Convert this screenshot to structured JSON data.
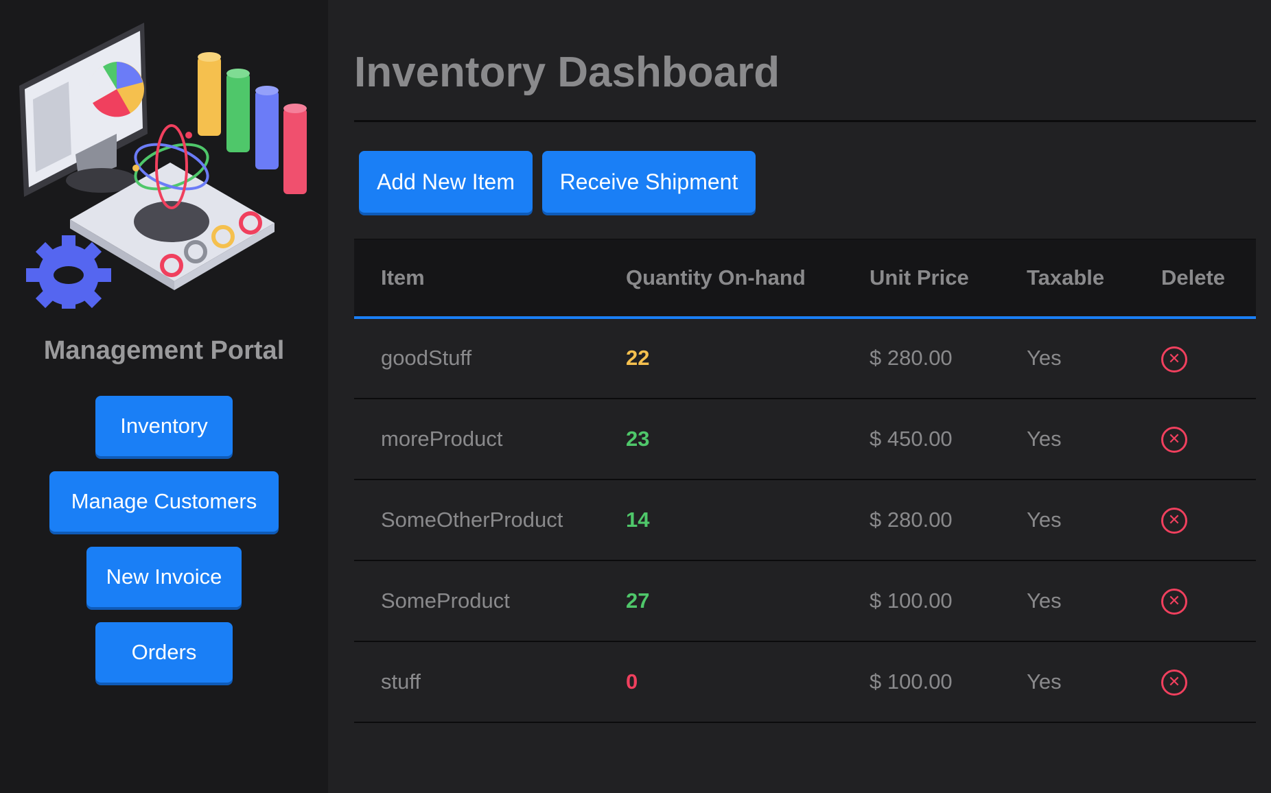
{
  "sidebar": {
    "portal_title": "Management Portal",
    "nav": [
      {
        "label": "Inventory"
      },
      {
        "label": "Manage Customers"
      },
      {
        "label": "New Invoice"
      },
      {
        "label": "Orders"
      }
    ],
    "illustration_icon": "analytics-illustration"
  },
  "main": {
    "title": "Inventory Dashboard",
    "actions": {
      "add_label": "Add New Item",
      "receive_label": "Receive Shipment"
    },
    "table": {
      "headers": [
        "Item",
        "Quantity On-hand",
        "Unit Price",
        "Taxable",
        "Delete"
      ],
      "rows": [
        {
          "item": "goodStuff",
          "qty": "22",
          "qty_color": "#f5c04e",
          "price": "$ 280.00",
          "taxable": "Yes"
        },
        {
          "item": "moreProduct",
          "qty": "23",
          "qty_color": "#4fc76a",
          "price": "$ 450.00",
          "taxable": "Yes"
        },
        {
          "item": "SomeOtherProduct",
          "qty": "14",
          "qty_color": "#4fc76a",
          "price": "$ 280.00",
          "taxable": "Yes"
        },
        {
          "item": "SomeProduct",
          "qty": "27",
          "qty_color": "#4fc76a",
          "price": "$ 100.00",
          "taxable": "Yes"
        },
        {
          "item": "stuff",
          "qty": "0",
          "qty_color": "#f0405e",
          "price": "$ 100.00",
          "taxable": "Yes"
        }
      ],
      "delete_icon": "close-circle-icon"
    }
  },
  "colors": {
    "accent": "#1a7ff6",
    "danger": "#f0405e",
    "warning": "#f5c04e",
    "success": "#4fc76a"
  }
}
